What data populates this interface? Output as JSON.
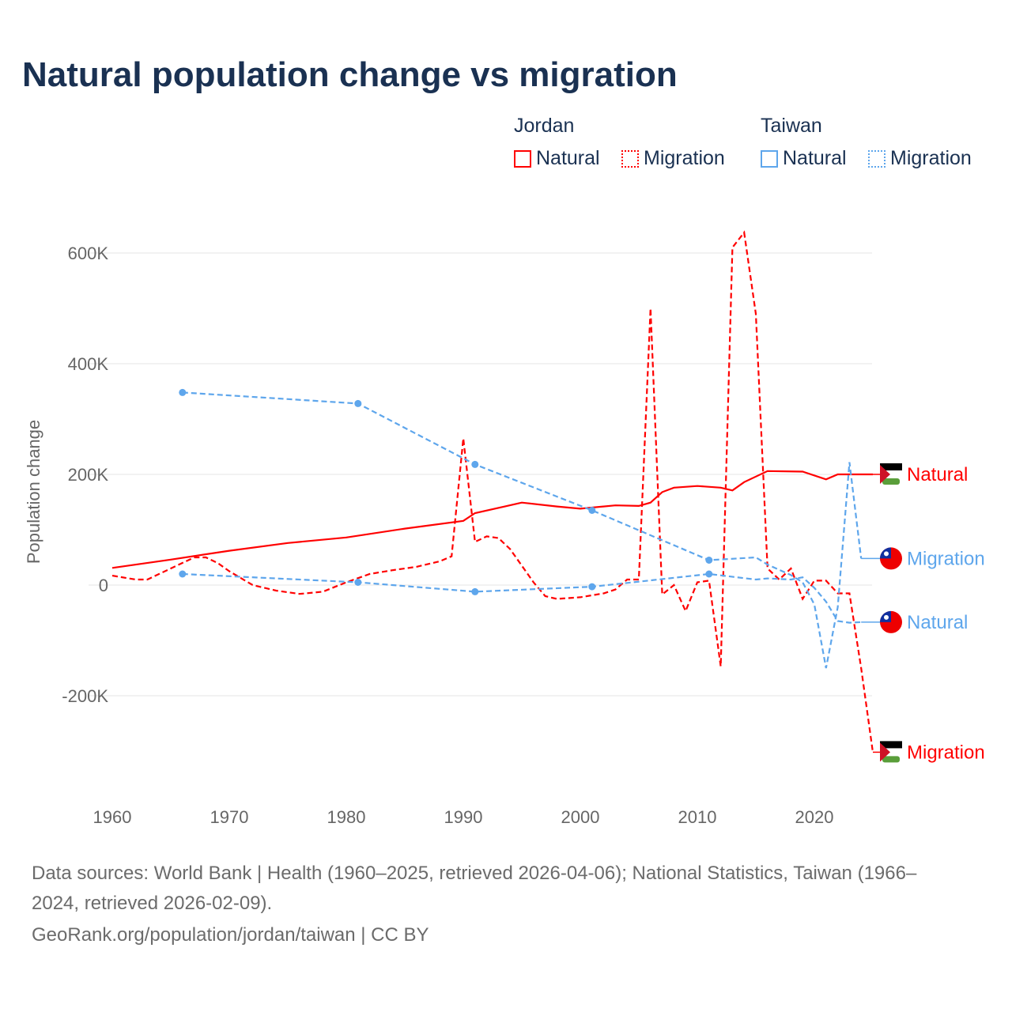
{
  "title": "Natural population change vs migration",
  "legend": {
    "groups": [
      {
        "name": "Jordan",
        "items": [
          "Natural",
          "Migration"
        ]
      },
      {
        "name": "Taiwan",
        "items": [
          "Natural",
          "Migration"
        ]
      }
    ]
  },
  "footer": {
    "line1": "Data sources: World Bank | Health (1960–2025, retrieved 2026-04-06); National Statistics, Taiwan (1966–",
    "line2": "2024, retrieved 2026-02-09).",
    "line3": "GeoRank.org/population/jordan/taiwan | CC BY"
  },
  "chart_data": {
    "type": "line",
    "title": "Natural population change vs migration",
    "xlabel": "",
    "ylabel": "Population change",
    "xlim": [
      1960,
      2025
    ],
    "ylim": [
      -320000,
      640000
    ],
    "xticks": [
      1960,
      1970,
      1980,
      1990,
      2000,
      2010,
      2020
    ],
    "yticks": [
      {
        "v": -200000,
        "l": "-200K"
      },
      {
        "v": 0,
        "l": "0"
      },
      {
        "v": 200000,
        "l": "200K"
      },
      {
        "v": 400000,
        "l": "400K"
      },
      {
        "v": 600000,
        "l": "600K"
      }
    ],
    "colors": {
      "Jordan": "#ff0000",
      "Taiwan": "#5ea6ec"
    },
    "series": [
      {
        "name": "Jordan Natural",
        "country": "Jordan",
        "kind": "Natural",
        "dashed": false,
        "end_label": "Natural",
        "x": [
          1960,
          1965,
          1970,
          1975,
          1980,
          1985,
          1990,
          1991,
          1995,
          1998,
          2000,
          2003,
          2005,
          2006,
          2007,
          2008,
          2010,
          2012,
          2013,
          2014,
          2016,
          2019,
          2021,
          2022,
          2025
        ],
        "y": [
          31000,
          46000,
          62000,
          76000,
          86000,
          102000,
          116000,
          130000,
          149000,
          142000,
          138000,
          144000,
          143000,
          149000,
          168000,
          176000,
          179000,
          176000,
          171000,
          186000,
          206000,
          205000,
          191000,
          200000,
          200000
        ]
      },
      {
        "name": "Jordan Migration",
        "country": "Jordan",
        "kind": "Migration",
        "dashed": true,
        "end_label": "Migration",
        "x": [
          1960,
          1962,
          1963,
          1965,
          1967,
          1968,
          1969,
          1970,
          1972,
          1974,
          1976,
          1978,
          1980,
          1982,
          1984,
          1986,
          1988,
          1989,
          1990,
          1991,
          1992,
          1993,
          1994,
          1995,
          1996,
          1997,
          1998,
          2000,
          2002,
          2003,
          2004,
          2005,
          2006,
          2007,
          2008,
          2009,
          2010,
          2011,
          2012,
          2013,
          2014,
          2015,
          2016,
          2017,
          2018,
          2019,
          2020,
          2021,
          2022,
          2023,
          2024,
          2025
        ],
        "y": [
          17000,
          10000,
          10000,
          30000,
          50000,
          50000,
          40000,
          25000,
          0,
          -10000,
          -16000,
          -12000,
          5000,
          20000,
          27000,
          33000,
          43000,
          52000,
          265000,
          78000,
          88000,
          85000,
          65000,
          35000,
          5000,
          -20000,
          -25000,
          -22000,
          -15000,
          -8000,
          10000,
          10000,
          500000,
          -17000,
          0,
          -47000,
          5000,
          8000,
          -147000,
          610000,
          637000,
          490000,
          30000,
          10000,
          30000,
          -25000,
          8000,
          8000,
          -15000,
          -15000,
          -150000,
          -302000
        ]
      },
      {
        "name": "Taiwan Natural",
        "country": "Taiwan",
        "kind": "Natural",
        "dashed": true,
        "end_label": "Natural",
        "x": [
          1966,
          1981,
          1991,
          2001,
          2011,
          2015,
          2016,
          2018,
          2019,
          2020,
          2021,
          2022,
          2023,
          2024
        ],
        "y": [
          20000,
          5000,
          -12000,
          -3000,
          20000,
          10000,
          12000,
          10000,
          14000,
          -5000,
          -30000,
          -65000,
          -68000,
          -67000
        ],
        "markers": [
          1966,
          1981,
          1991,
          2001,
          2011
        ]
      },
      {
        "name": "Taiwan Migration",
        "country": "Taiwan",
        "kind": "Migration",
        "dashed": true,
        "end_label": "Migration",
        "x": [
          1966,
          1981,
          1991,
          2001,
          2011,
          2015,
          2016,
          2018,
          2019,
          2020,
          2021,
          2022,
          2023,
          2024
        ],
        "y": [
          348000,
          328000,
          218000,
          135000,
          45000,
          50000,
          37000,
          18000,
          5000,
          -35000,
          -150000,
          -40000,
          222000,
          48000
        ],
        "markers": [
          1966,
          1981,
          1991,
          2001,
          2011
        ]
      }
    ]
  }
}
